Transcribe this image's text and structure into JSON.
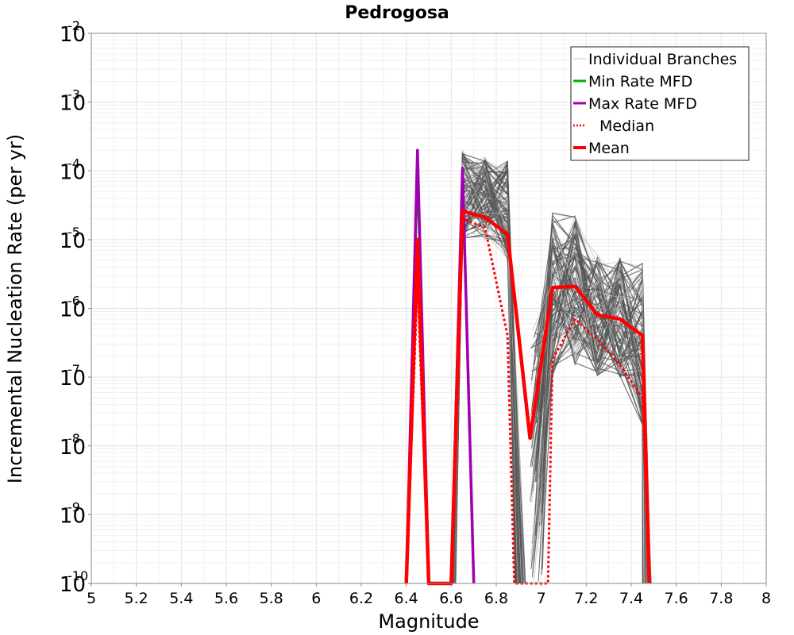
{
  "chart_data": {
    "type": "line",
    "title": "Pedrogosa",
    "xlabel": "Magnitude",
    "ylabel": "Incremental Nucleation Rate (per yr)",
    "xlim": [
      5,
      8
    ],
    "ylim": [
      1e-10,
      0.01
    ],
    "y_scale": "log",
    "grid": true,
    "legend_position": "top-right",
    "x_ticks": [
      "5",
      "5.2",
      "5.4",
      "5.6",
      "5.8",
      "6",
      "6.2",
      "6.4",
      "6.6",
      "6.8",
      "7",
      "7.2",
      "7.4",
      "7.6",
      "7.8",
      "8"
    ],
    "y_tick_exponents": [
      "-10",
      "-9",
      "-8",
      "-7",
      "-6",
      "-5",
      "-4",
      "-3",
      "-2"
    ],
    "legend": [
      {
        "label": "Individual Branches",
        "color": "#c8c8c8",
        "style": "thin"
      },
      {
        "label": "Min Rate MFD",
        "color": "#00b000",
        "style": "solid"
      },
      {
        "label": "Max Rate MFD",
        "color": "#a000b0",
        "style": "solid"
      },
      {
        "label": "Median",
        "color": "#ff0000",
        "style": "dotted"
      },
      {
        "label": "Mean",
        "color": "#ff0000",
        "style": "thick"
      }
    ],
    "series": [
      {
        "name": "Min Rate MFD",
        "color": "#00b000",
        "x": [
          6.4,
          6.45,
          6.5,
          6.6,
          6.65,
          6.7
        ],
        "y": [
          1e-10,
          0.0001,
          1e-10,
          1e-10,
          0.0001,
          1e-10
        ]
      },
      {
        "name": "Max Rate MFD",
        "color": "#a000b0",
        "x": [
          6.4,
          6.45,
          6.5,
          6.6,
          6.65,
          6.7
        ],
        "y": [
          1e-10,
          0.0002,
          1e-10,
          1e-10,
          0.00011,
          1e-10
        ]
      },
      {
        "name": "Median",
        "color": "#ff0000",
        "x": [
          6.4,
          6.45,
          6.5,
          6.6,
          6.65,
          6.75,
          6.85,
          6.88,
          7.03,
          7.05,
          7.15,
          7.25,
          7.35,
          7.45,
          7.48
        ],
        "y": [
          1e-10,
          2.5e-06,
          1e-10,
          1e-10,
          2e-05,
          1.5e-05,
          4e-07,
          1e-10,
          1e-10,
          1.8e-07,
          7e-07,
          3.5e-07,
          1.5e-07,
          5e-08,
          1e-10
        ]
      },
      {
        "name": "Mean",
        "color": "#ff0000",
        "x": [
          6.4,
          6.45,
          6.5,
          6.6,
          6.65,
          6.75,
          6.85,
          6.95,
          7.05,
          7.15,
          7.25,
          7.35,
          7.45,
          7.48
        ],
        "y": [
          1e-10,
          1e-05,
          1e-10,
          1e-10,
          2.6e-05,
          2.1e-05,
          1.2e-05,
          1.3e-08,
          2e-06,
          2.1e-06,
          8e-07,
          7e-07,
          4e-07,
          1e-10
        ]
      }
    ],
    "branch_bands": [
      {
        "x": 6.65,
        "y_range": [
          1e-05,
          0.0002
        ]
      },
      {
        "x": 6.75,
        "y_range": [
          8e-06,
          0.00016
        ]
      },
      {
        "x": 6.85,
        "y_range": [
          5e-06,
          0.00014
        ]
      },
      {
        "x": 7.05,
        "y_range": [
          1e-07,
          2.5e-05
        ]
      },
      {
        "x": 7.15,
        "y_range": [
          1.5e-07,
          2.5e-05
        ]
      },
      {
        "x": 7.25,
        "y_range": [
          1e-07,
          6e-06
        ]
      },
      {
        "x": 7.35,
        "y_range": [
          1e-07,
          5.5e-06
        ]
      },
      {
        "x": 7.45,
        "y_range": [
          2e-08,
          5e-06
        ]
      }
    ]
  }
}
